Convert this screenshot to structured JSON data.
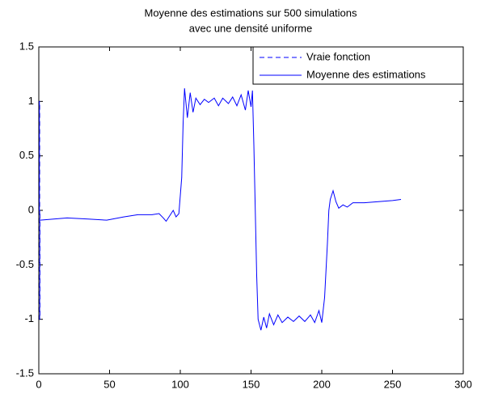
{
  "chart_data": {
    "type": "line",
    "title": [
      "Moyenne des estimations sur 500 simulations",
      "avec une densité uniforme"
    ],
    "xlim": [
      0,
      300
    ],
    "xticks": [
      0,
      50,
      100,
      150,
      200,
      250,
      300
    ],
    "ylim": [
      -1.5,
      1.5
    ],
    "yticks": [
      -1.5,
      -1,
      -0.5,
      0,
      0.5,
      1,
      1.5
    ],
    "grid": false,
    "legend": "top-right",
    "series": [
      {
        "name": "Vraie fonction",
        "color": "#0000ff",
        "dash": "dashed",
        "x": [
          0,
          0.4,
          0.4,
          0.6,
          0.6,
          0.8,
          0.8,
          1
        ],
        "values": [
          0,
          0,
          1,
          1,
          -1,
          -1,
          0,
          0
        ]
      },
      {
        "name": "Moyenne des estimations",
        "color": "#0000ff",
        "dash": "solid",
        "x": [
          1,
          20,
          35,
          48,
          60,
          70,
          80,
          85,
          88,
          90,
          93,
          95,
          97,
          99,
          101,
          102,
          103,
          105,
          107,
          109,
          111,
          114,
          117,
          120,
          124,
          127,
          130,
          134,
          137,
          140,
          143,
          146,
          148,
          150,
          151,
          152,
          153,
          154,
          155,
          157,
          159,
          161,
          163,
          166,
          169,
          172,
          176,
          180,
          184,
          188,
          192,
          195,
          198,
          200,
          202,
          204,
          205,
          206,
          208,
          210,
          212,
          215,
          218,
          222,
          230,
          240,
          250,
          256
        ],
        "values": [
          -0.09,
          -0.07,
          -0.08,
          -0.09,
          -0.06,
          -0.04,
          -0.04,
          -0.03,
          -0.07,
          -0.1,
          -0.04,
          0.0,
          -0.06,
          -0.03,
          0.3,
          0.8,
          1.12,
          0.85,
          1.08,
          0.9,
          1.03,
          0.97,
          1.02,
          0.99,
          1.03,
          0.96,
          1.03,
          0.98,
          1.04,
          0.96,
          1.06,
          0.92,
          1.1,
          0.95,
          1.1,
          0.6,
          0,
          -0.6,
          -1.0,
          -1.1,
          -0.98,
          -1.08,
          -0.95,
          -1.05,
          -0.96,
          -1.03,
          -0.98,
          -1.02,
          -0.97,
          -1.02,
          -0.96,
          -1.03,
          -0.92,
          -1.03,
          -0.8,
          -0.3,
          0.0,
          0.1,
          0.18,
          0.08,
          0.02,
          0.05,
          0.03,
          0.07,
          0.07,
          0.08,
          0.09,
          0.1
        ]
      }
    ]
  }
}
